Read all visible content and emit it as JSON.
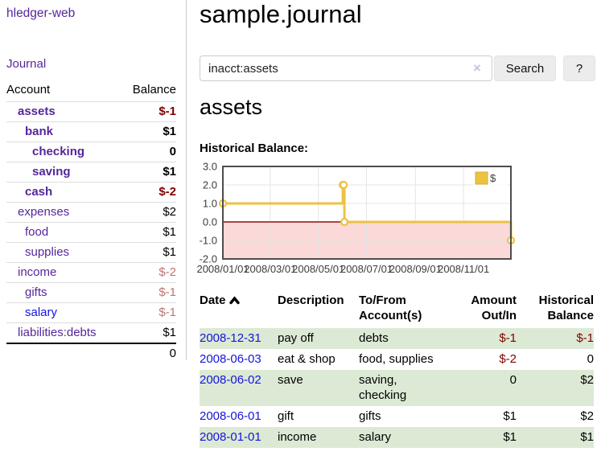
{
  "colors": {
    "link_purple": "#55269b",
    "link_blue": "#1414dc",
    "negative_strong": "#7f0000",
    "negative_muted": "#bd7575",
    "row_stripe_green": "#dcead5"
  },
  "sidebar": {
    "brand": "hledger-web",
    "nav_journal": "Journal",
    "accounts": {
      "headers": [
        "Account",
        "Balance"
      ],
      "rows": [
        {
          "name": "assets",
          "balance": "$-1",
          "level": 1,
          "bold": true,
          "neg": "neg"
        },
        {
          "name": "bank",
          "balance": "$1",
          "level": 2,
          "bold": true,
          "neg": ""
        },
        {
          "name": "checking",
          "balance": "0",
          "level": 3,
          "bold": true,
          "neg": ""
        },
        {
          "name": "saving",
          "balance": "$1",
          "level": 3,
          "bold": true,
          "neg": ""
        },
        {
          "name": "cash",
          "balance": "$-2",
          "level": 2,
          "bold": true,
          "neg": "neg"
        },
        {
          "name": "expenses",
          "balance": "$2",
          "level": 1,
          "bold": false,
          "neg": ""
        },
        {
          "name": "food",
          "balance": "$1",
          "level": 2,
          "bold": false,
          "neg": ""
        },
        {
          "name": "supplies",
          "balance": "$1",
          "level": 2,
          "bold": false,
          "neg": ""
        },
        {
          "name": "income",
          "balance": "$-2",
          "level": 1,
          "bold": false,
          "neg": "negmuted"
        },
        {
          "name": "gifts",
          "balance": "$-1",
          "level": 2,
          "bold": false,
          "neg": "negmuted"
        },
        {
          "name": "salary",
          "balance": "$-1",
          "level": 2,
          "bold": false,
          "neg": "negmuted",
          "link": "blue"
        },
        {
          "name": "liabilities:debts",
          "balance": "$1",
          "level": 1,
          "bold": false,
          "neg": ""
        }
      ],
      "total": "0"
    }
  },
  "main": {
    "title": "sample.journal",
    "search": {
      "value": "inacct:assets",
      "clear_icon": "×",
      "search_label": "Search",
      "help_label": "?"
    },
    "heading": "assets",
    "section_label": "Historical Balance:"
  },
  "chart_data": {
    "type": "line",
    "title": "Historical Balance",
    "x_range": [
      "2008/01/01",
      "2008/12/31"
    ],
    "ylim": [
      -2,
      3
    ],
    "x_ticks": [
      "2008/01/01",
      "2008/03/01",
      "2008/05/01",
      "2008/07/01",
      "2008/09/01",
      "2008/11/01"
    ],
    "y_ticks": [
      "3.0",
      "2.0",
      "1.0",
      "0.0",
      "-1.0",
      "-2.0"
    ],
    "grid": true,
    "grid_color": "#e5e5e5",
    "border_color": "#4d4d4d",
    "zero_line_color": "#8b0f0f",
    "negative_region_color": "#fbd9d9",
    "legend_position": "top-right",
    "legend": [
      {
        "label": "$",
        "swatch": "#edc240"
      }
    ],
    "series": [
      {
        "name": "$",
        "color": "#edc240",
        "step": true,
        "points": [
          [
            "2008/01/01",
            1
          ],
          [
            "2008/06/01",
            2
          ],
          [
            "2008/06/02",
            2
          ],
          [
            "2008/06/03",
            0
          ],
          [
            "2008/12/31",
            -1
          ]
        ]
      }
    ]
  },
  "register": {
    "columns": [
      {
        "lines": [
          "Date"
        ],
        "align": "left",
        "sorted_asc": true
      },
      {
        "lines": [
          "Description"
        ],
        "align": "left"
      },
      {
        "lines": [
          "To/From",
          "Account(s)"
        ],
        "align": "left"
      },
      {
        "lines": [
          "Amount",
          "Out/In"
        ],
        "align": "right"
      },
      {
        "lines": [
          "Historical",
          "Balance"
        ],
        "align": "right"
      }
    ],
    "rows": [
      {
        "date": "2008-12-31",
        "description": "pay off",
        "accounts": "debts",
        "amount": "$-1",
        "amount_negative": true,
        "balance": "$-1",
        "balance_negative": true
      },
      {
        "date": "2008-06-03",
        "description": "eat & shop",
        "accounts": "food, supplies",
        "amount": "$-2",
        "amount_negative": true,
        "balance": "0",
        "balance_negative": false
      },
      {
        "date": "2008-06-02",
        "description": "save",
        "accounts": "saving, checking",
        "amount": "0",
        "amount_negative": false,
        "balance": "$2",
        "balance_negative": false
      },
      {
        "date": "2008-06-01",
        "description": "gift",
        "accounts": "gifts",
        "amount": "$1",
        "amount_negative": false,
        "balance": "$2",
        "balance_negative": false
      },
      {
        "date": "2008-01-01",
        "description": "income",
        "accounts": "salary",
        "amount": "$1",
        "amount_negative": false,
        "balance": "$1",
        "balance_negative": false
      }
    ]
  }
}
